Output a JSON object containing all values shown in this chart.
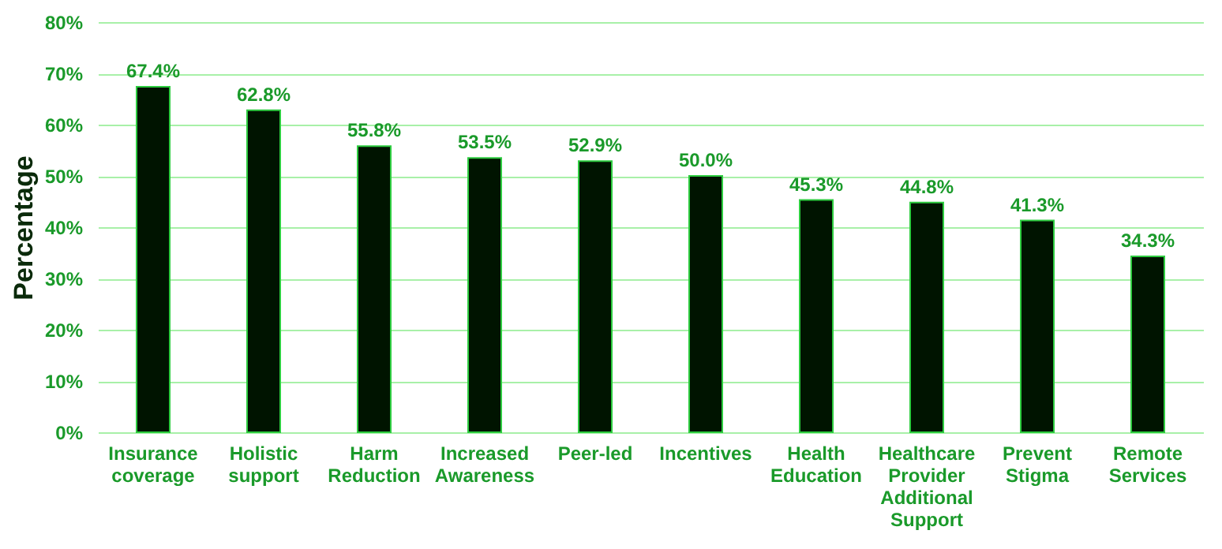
{
  "chart_data": {
    "type": "bar",
    "ylabel": "Percentage",
    "categories": [
      "Insurance coverage",
      "Holistic support",
      "Harm Reduction",
      "Increased Awareness",
      "Peer-led",
      "Incentives",
      "Health Education",
      "Healthcare Provider Additional Support",
      "Prevent Stigma",
      "Remote Services"
    ],
    "values": [
      67.4,
      62.8,
      55.8,
      53.5,
      52.9,
      50.0,
      45.3,
      44.8,
      41.3,
      34.3
    ],
    "value_labels": [
      "67.4%",
      "62.8%",
      "55.8%",
      "53.5%",
      "52.9%",
      "50.0%",
      "45.3%",
      "44.8%",
      "41.3%",
      "34.3%"
    ],
    "color": "#001400",
    "ylim": [
      0,
      80
    ],
    "yticks": [
      {
        "value": 0,
        "label": "0%"
      },
      {
        "value": 10,
        "label": "10%"
      },
      {
        "value": 20,
        "label": "20%"
      },
      {
        "value": 30,
        "label": "30%"
      },
      {
        "value": 40,
        "label": "40%"
      },
      {
        "value": 50,
        "label": "50%"
      },
      {
        "value": 60,
        "label": "60%"
      },
      {
        "value": 70,
        "label": "70%"
      },
      {
        "value": 80,
        "label": "80%"
      }
    ],
    "grid": "y"
  }
}
